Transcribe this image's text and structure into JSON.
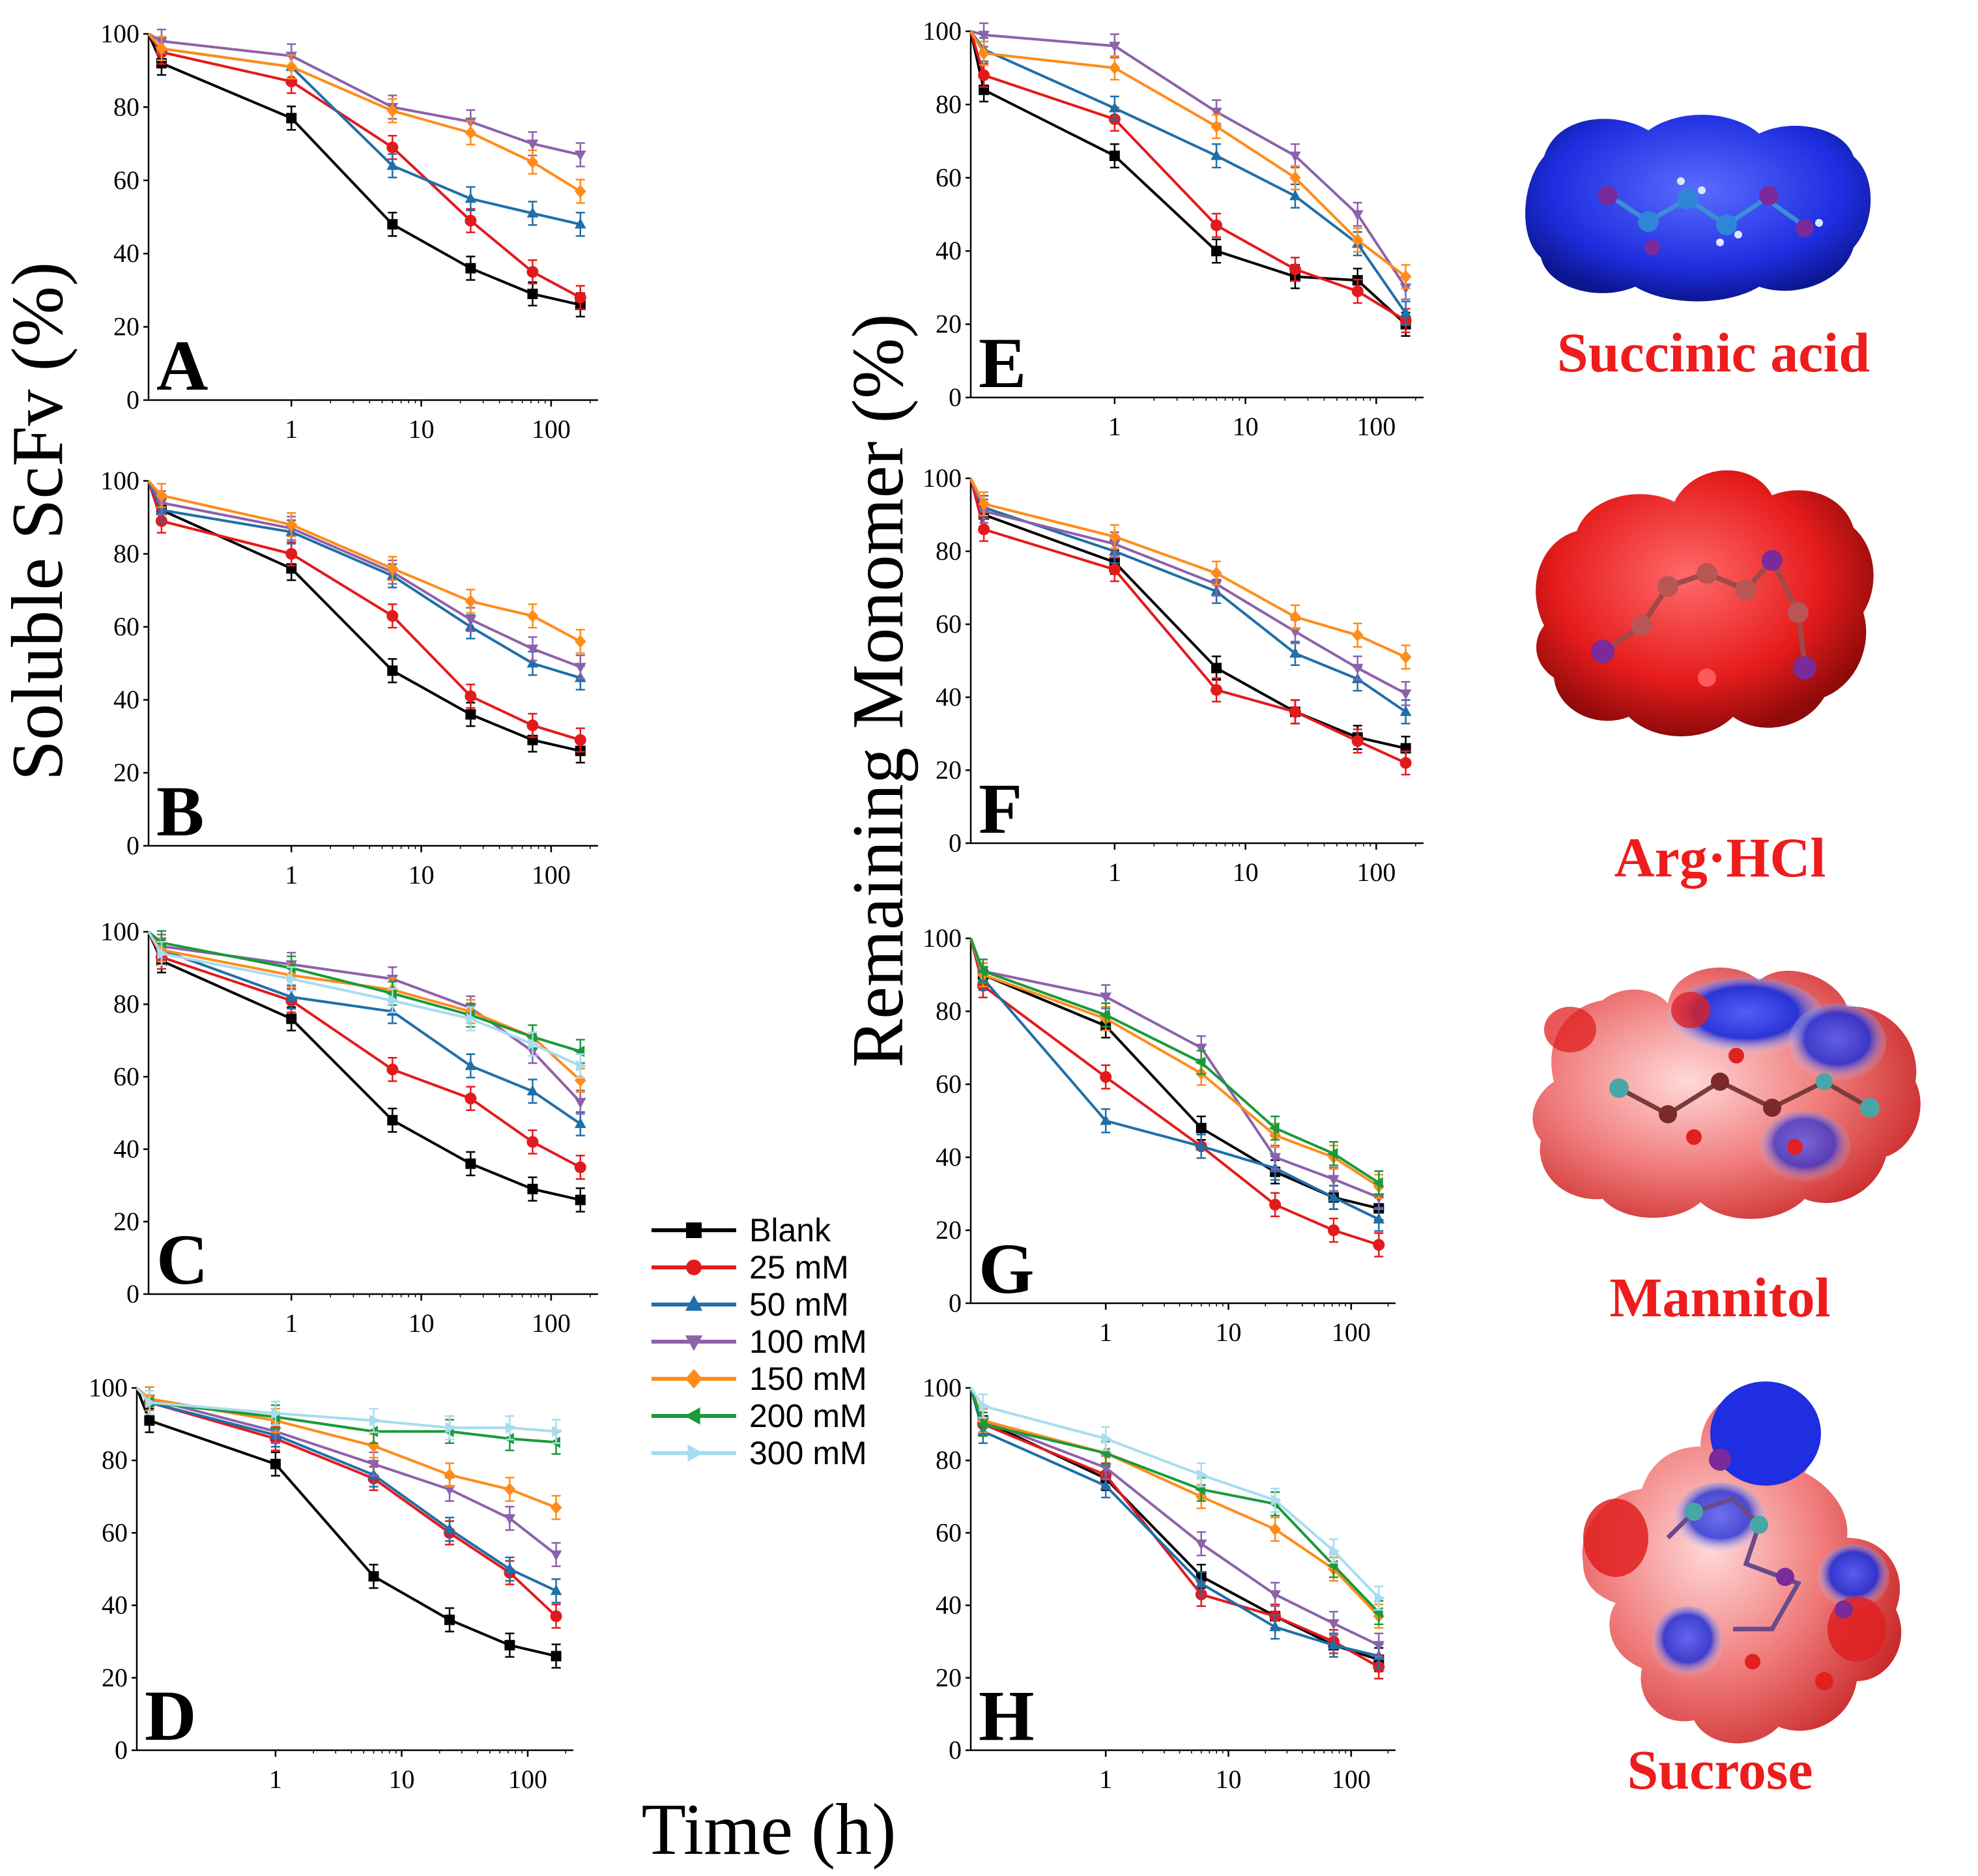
{
  "figure": {
    "x_axis_label": "Time (h)",
    "y_axis_label_left": "Soluble ScFv (%)",
    "y_axis_label_right": "Remaining Monomer (%)"
  },
  "series_colors": {
    "Blank": "#000000",
    "25 mM": "#e31a1c",
    "50 mM": "#1f6fa8",
    "100 mM": "#8c62aa",
    "150 mM": "#ff8c1a",
    "200 mM": "#1a9a3a",
    "300 mM": "#a8dcf0"
  },
  "legend": [
    {
      "label": "Blank",
      "marker": "square",
      "color": "#000000"
    },
    {
      "label": "25 mM",
      "marker": "circle",
      "color": "#e31a1c"
    },
    {
      "label": "50 mM",
      "marker": "triangle-up",
      "color": "#1f6fa8"
    },
    {
      "label": "100 mM",
      "marker": "triangle-down",
      "color": "#8c62aa"
    },
    {
      "label": "150 mM",
      "marker": "diamond",
      "color": "#ff8c1a"
    },
    {
      "label": "200 mM",
      "marker": "triangle-left",
      "color": "#1a9a3a"
    },
    {
      "label": "300 mM",
      "marker": "triangle-right",
      "color": "#a8dcf0"
    }
  ],
  "molecules": [
    {
      "name": "Succinic acid",
      "surface": "blue"
    },
    {
      "name": "Arg·HCl",
      "surface": "red"
    },
    {
      "name": "Mannitol",
      "surface": "red-blue"
    },
    {
      "name": "Sucrose",
      "surface": "red-blue"
    }
  ],
  "chart_data": [
    {
      "panel": "A",
      "type": "line",
      "xscale": "log",
      "x": [
        0.1,
        1,
        6,
        24,
        72,
        168
      ],
      "xticks": [
        "1",
        "10",
        "100"
      ],
      "yticks": [
        "0",
        "20",
        "40",
        "60",
        "80",
        "100"
      ],
      "ylim": [
        0,
        100
      ],
      "series": [
        {
          "name": "Blank",
          "values": [
            92,
            77,
            48,
            36,
            29,
            26
          ]
        },
        {
          "name": "25 mM",
          "values": [
            95,
            87,
            69,
            49,
            35,
            28
          ]
        },
        {
          "name": "50 mM",
          "values": [
            96,
            91,
            64,
            55,
            51,
            48
          ]
        },
        {
          "name": "100 mM",
          "values": [
            98,
            94,
            80,
            76,
            70,
            67
          ]
        },
        {
          "name": "150 mM",
          "values": [
            96,
            91,
            79,
            73,
            65,
            57
          ]
        }
      ]
    },
    {
      "panel": "B",
      "type": "line",
      "xscale": "log",
      "x": [
        0.1,
        1,
        6,
        24,
        72,
        168
      ],
      "xticks": [
        "1",
        "10",
        "100"
      ],
      "yticks": [
        "0",
        "20",
        "40",
        "60",
        "80",
        "100"
      ],
      "ylim": [
        0,
        100
      ],
      "series": [
        {
          "name": "Blank",
          "values": [
            92,
            76,
            48,
            36,
            29,
            26
          ]
        },
        {
          "name": "25 mM",
          "values": [
            89,
            80,
            63,
            41,
            33,
            29
          ]
        },
        {
          "name": "50 mM",
          "values": [
            92,
            86,
            74,
            60,
            50,
            46
          ]
        },
        {
          "name": "100 mM",
          "values": [
            94,
            87,
            75,
            62,
            54,
            49
          ]
        },
        {
          "name": "150 mM",
          "values": [
            96,
            88,
            76,
            67,
            63,
            56
          ]
        }
      ]
    },
    {
      "panel": "C",
      "type": "line",
      "xscale": "log",
      "x": [
        0.1,
        1,
        6,
        24,
        72,
        168
      ],
      "xticks": [
        "1",
        "10",
        "100"
      ],
      "yticks": [
        "0",
        "20",
        "40",
        "60",
        "80",
        "100"
      ],
      "ylim": [
        0,
        100
      ],
      "series": [
        {
          "name": "Blank",
          "values": [
            92,
            76,
            48,
            36,
            29,
            26
          ]
        },
        {
          "name": "25 mM",
          "values": [
            93,
            81,
            62,
            54,
            42,
            35
          ]
        },
        {
          "name": "50 mM",
          "values": [
            95,
            82,
            78,
            63,
            56,
            47
          ]
        },
        {
          "name": "100 mM",
          "values": [
            96,
            91,
            87,
            79,
            67,
            53
          ]
        },
        {
          "name": "150 mM",
          "values": [
            95,
            88,
            84,
            78,
            71,
            59
          ]
        },
        {
          "name": "200 mM",
          "values": [
            97,
            90,
            83,
            77,
            71,
            67
          ]
        },
        {
          "name": "300 mM",
          "values": [
            94,
            87,
            81,
            76,
            69,
            63
          ]
        }
      ]
    },
    {
      "panel": "D",
      "type": "line",
      "xscale": "log",
      "x": [
        0.1,
        1,
        6,
        24,
        72,
        168
      ],
      "xticks": [
        "1",
        "10",
        "100"
      ],
      "yticks": [
        "0",
        "20",
        "40",
        "60",
        "80",
        "100"
      ],
      "ylim": [
        0,
        100
      ],
      "series": [
        {
          "name": "Blank",
          "values": [
            91,
            79,
            48,
            36,
            29,
            26
          ]
        },
        {
          "name": "25 mM",
          "values": [
            96,
            86,
            75,
            60,
            49,
            37
          ]
        },
        {
          "name": "50 mM",
          "values": [
            96,
            87,
            76,
            61,
            50,
            44
          ]
        },
        {
          "name": "100 mM",
          "values": [
            97,
            88,
            79,
            72,
            64,
            54
          ]
        },
        {
          "name": "150 mM",
          "values": [
            97,
            91,
            84,
            76,
            72,
            67
          ]
        },
        {
          "name": "200 mM",
          "values": [
            96,
            92,
            88,
            88,
            86,
            85
          ]
        },
        {
          "name": "300 mM",
          "values": [
            96,
            93,
            91,
            89,
            89,
            88
          ]
        }
      ]
    },
    {
      "panel": "E",
      "type": "line",
      "xscale": "log",
      "x": [
        0.1,
        1,
        6,
        24,
        72,
        168
      ],
      "xticks": [
        "1",
        "10",
        "100"
      ],
      "yticks": [
        "0",
        "20",
        "40",
        "60",
        "80",
        "100"
      ],
      "ylim": [
        0,
        100
      ],
      "series": [
        {
          "name": "Blank",
          "values": [
            84,
            66,
            40,
            33,
            32,
            20
          ]
        },
        {
          "name": "25 mM",
          "values": [
            88,
            76,
            47,
            35,
            29,
            21
          ]
        },
        {
          "name": "50 mM",
          "values": [
            95,
            79,
            66,
            55,
            42,
            23
          ]
        },
        {
          "name": "100 mM",
          "values": [
            99,
            96,
            78,
            66,
            50,
            30
          ]
        },
        {
          "name": "150 mM",
          "values": [
            94,
            90,
            74,
            60,
            43,
            33
          ]
        }
      ]
    },
    {
      "panel": "F",
      "type": "line",
      "xscale": "log",
      "x": [
        0.1,
        1,
        6,
        24,
        72,
        168
      ],
      "xticks": [
        "1",
        "10",
        "100"
      ],
      "yticks": [
        "0",
        "20",
        "40",
        "60",
        "80",
        "100"
      ],
      "ylim": [
        0,
        100
      ],
      "series": [
        {
          "name": "Blank",
          "values": [
            90,
            77,
            48,
            36,
            29,
            26
          ]
        },
        {
          "name": "25 mM",
          "values": [
            86,
            75,
            42,
            36,
            28,
            22
          ]
        },
        {
          "name": "50 mM",
          "values": [
            92,
            80,
            69,
            52,
            45,
            36
          ]
        },
        {
          "name": "100 mM",
          "values": [
            91,
            82,
            71,
            58,
            48,
            41
          ]
        },
        {
          "name": "150 mM",
          "values": [
            93,
            84,
            74,
            62,
            57,
            51
          ]
        }
      ]
    },
    {
      "panel": "G",
      "type": "line",
      "xscale": "log",
      "x": [
        0.1,
        1,
        6,
        24,
        72,
        168
      ],
      "xticks": [
        "1",
        "10",
        "100"
      ],
      "yticks": [
        "0",
        "20",
        "40",
        "60",
        "80",
        "100"
      ],
      "ylim": [
        0,
        100
      ],
      "series": [
        {
          "name": "Blank",
          "values": [
            90,
            76,
            48,
            36,
            29,
            26
          ]
        },
        {
          "name": "25 mM",
          "values": [
            87,
            62,
            43,
            27,
            20,
            16
          ]
        },
        {
          "name": "50 mM",
          "values": [
            89,
            50,
            43,
            37,
            29,
            23
          ]
        },
        {
          "name": "100 mM",
          "values": [
            91,
            84,
            70,
            40,
            34,
            29
          ]
        },
        {
          "name": "150 mM",
          "values": [
            90,
            78,
            63,
            46,
            40,
            32
          ]
        },
        {
          "name": "200 mM",
          "values": [
            91,
            79,
            66,
            48,
            41,
            33
          ]
        }
      ]
    },
    {
      "panel": "H",
      "type": "line",
      "xscale": "log",
      "x": [
        0.1,
        1,
        6,
        24,
        72,
        168
      ],
      "xticks": [
        "1",
        "10",
        "100"
      ],
      "yticks": [
        "0",
        "20",
        "40",
        "60",
        "80",
        "100"
      ],
      "ylim": [
        0,
        100
      ],
      "series": [
        {
          "name": "Blank",
          "values": [
            91,
            75,
            48,
            37,
            29,
            25
          ]
        },
        {
          "name": "25 mM",
          "values": [
            90,
            76,
            43,
            37,
            30,
            23
          ]
        },
        {
          "name": "50 mM",
          "values": [
            88,
            73,
            46,
            34,
            29,
            26
          ]
        },
        {
          "name": "100 mM",
          "values": [
            91,
            78,
            57,
            43,
            35,
            29
          ]
        },
        {
          "name": "150 mM",
          "values": [
            91,
            82,
            70,
            61,
            50,
            37
          ]
        },
        {
          "name": "200 mM",
          "values": [
            90,
            82,
            72,
            68,
            51,
            38
          ]
        },
        {
          "name": "300 mM",
          "values": [
            95,
            86,
            76,
            69,
            55,
            42
          ]
        }
      ]
    }
  ]
}
